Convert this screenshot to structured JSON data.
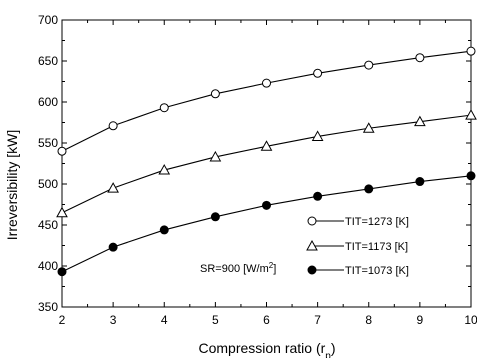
{
  "chart_data": {
    "type": "line",
    "xlabel_main": "Compression ratio (r",
    "xlabel_sub": "p",
    "xlabel_end": ")",
    "ylabel": "Irreversibility [kW]",
    "xlim": [
      2,
      10
    ],
    "ylim": [
      350,
      700
    ],
    "xticks": [
      2,
      3,
      4,
      5,
      6,
      7,
      8,
      9,
      10
    ],
    "yticks": [
      350,
      400,
      450,
      500,
      550,
      600,
      650,
      700
    ],
    "x": [
      2,
      3,
      4,
      5,
      6,
      7,
      8,
      9,
      10
    ],
    "series": [
      {
        "name": "TIT=1273 [K]",
        "marker": "circle-open",
        "values": [
          540,
          571,
          593,
          610,
          623,
          635,
          645,
          654,
          662
        ]
      },
      {
        "name": "TIT=1173 [K]",
        "marker": "triangle-open",
        "values": [
          465,
          495,
          517,
          533,
          546,
          558,
          568,
          576,
          584
        ]
      },
      {
        "name": "TIT=1073 [K]",
        "marker": "circle-filled",
        "values": [
          393,
          423,
          444,
          460,
          474,
          485,
          494,
          503,
          510
        ]
      }
    ],
    "annotation": {
      "main": "SR=900 [W/m",
      "sup": "2",
      "end": "]"
    },
    "grid": false,
    "legend_position": "lower-right"
  }
}
